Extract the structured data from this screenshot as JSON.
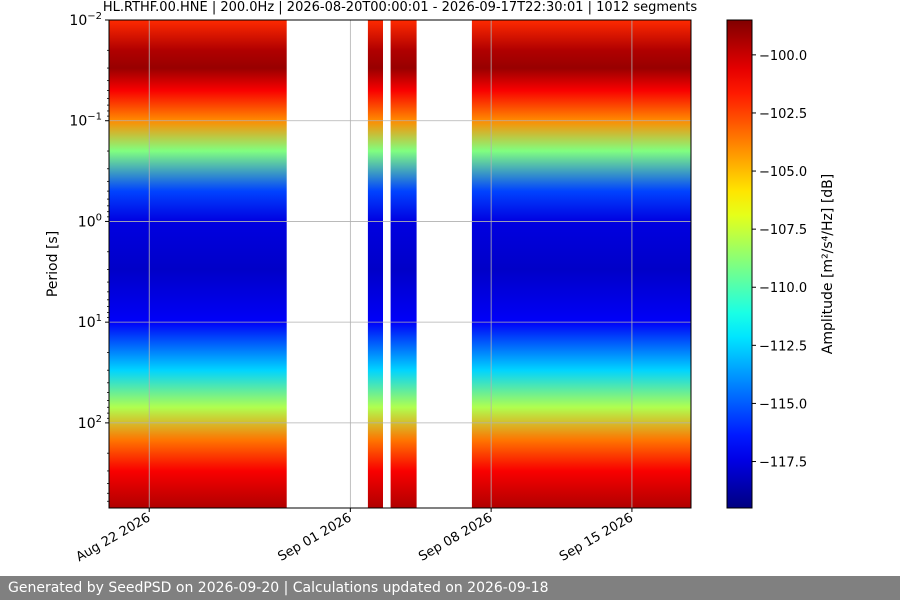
{
  "chart_data": {
    "type": "heatmap",
    "title": "HL.RTHF.00.HNE | 200.0Hz | 2026-08-20T00:00:01 - 2026-09-17T22:30:01 | 1012 segments",
    "xlabel": "",
    "ylabel": "Period [s]",
    "x_range": [
      "2026-08-20T00:00:01",
      "2026-09-17T22:30:01"
    ],
    "x_ticks": [
      {
        "date": "2026-08-22",
        "label": "Aug 22 2026"
      },
      {
        "date": "2026-09-01",
        "label": "Sep 01 2026"
      },
      {
        "date": "2026-09-08",
        "label": "Sep 08 2026"
      },
      {
        "date": "2026-09-15",
        "label": "Sep 15 2026"
      }
    ],
    "y_scale": "log",
    "y_inverted": true,
    "ylim": [
      0.01,
      700
    ],
    "y_ticks": [
      {
        "value": 0.01,
        "base": "10",
        "exp": "−2"
      },
      {
        "value": 0.1,
        "base": "10",
        "exp": "−1"
      },
      {
        "value": 1,
        "base": "10",
        "exp": "0"
      },
      {
        "value": 10,
        "base": "10",
        "exp": "1"
      },
      {
        "value": 100,
        "base": "10",
        "exp": "2"
      }
    ],
    "grid": true,
    "data_segments": [
      {
        "start": "2026-08-20T00:00:01",
        "end": "2026-08-28T20:00:00"
      },
      {
        "start": "2026-09-01T21:00:00",
        "end": "2026-09-02T15:00:00"
      },
      {
        "start": "2026-09-03T00:00:00",
        "end": "2026-09-04T07:00:00"
      },
      {
        "start": "2026-09-07T01:00:00",
        "end": "2026-09-17T22:30:01"
      }
    ],
    "colorbar": {
      "label": "Amplitude [m²/s⁴/Hz] [dB]",
      "range": [
        -119.5,
        -98.5
      ],
      "ticks": [
        -100.0,
        -102.5,
        -105.0,
        -107.5,
        -110.0,
        -112.5,
        -115.0,
        -117.5
      ],
      "tick_labels": [
        "−100.0",
        "−102.5",
        "−105.0",
        "−107.5",
        "−110.0",
        "−112.5",
        "−115.0",
        "−117.5"
      ],
      "colormap": "jet"
    },
    "spectrum_profile": [
      {
        "period": 0.01,
        "db": -102
      },
      {
        "period": 0.02,
        "db": -99.5
      },
      {
        "period": 0.03,
        "db": -99
      },
      {
        "period": 0.05,
        "db": -101
      },
      {
        "period": 0.1,
        "db": -104
      },
      {
        "period": 0.2,
        "db": -109
      },
      {
        "period": 0.5,
        "db": -115.5
      },
      {
        "period": 1,
        "db": -117.5
      },
      {
        "period": 3,
        "db": -118
      },
      {
        "period": 10,
        "db": -117
      },
      {
        "period": 30,
        "db": -112.5
      },
      {
        "period": 70,
        "db": -108
      },
      {
        "period": 150,
        "db": -103.5
      },
      {
        "period": 300,
        "db": -101
      },
      {
        "period": 700,
        "db": -99.5
      }
    ]
  },
  "footer": {
    "text": "Generated by SeedPSD on 2026-09-20 | Calculations updated on 2026-09-18"
  }
}
